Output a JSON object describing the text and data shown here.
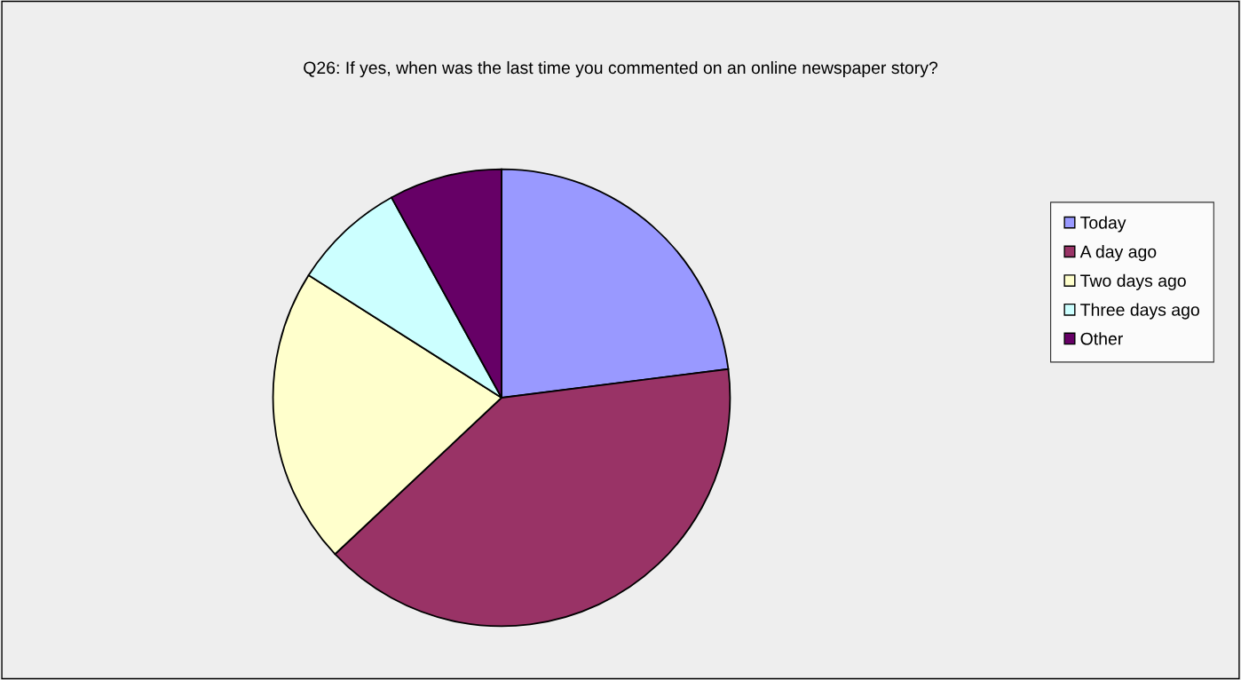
{
  "chart_data": {
    "type": "pie",
    "title": "Q26: If yes, when was the last time you commented on an online newspaper story?",
    "categories": [
      "Today",
      "A day ago",
      "Two days ago",
      "Three days ago",
      "Other"
    ],
    "values": [
      23,
      40,
      21,
      8,
      8
    ],
    "colors": [
      "#9999ff",
      "#993366",
      "#ffffcc",
      "#ccffff",
      "#660066"
    ],
    "legend": "right"
  }
}
